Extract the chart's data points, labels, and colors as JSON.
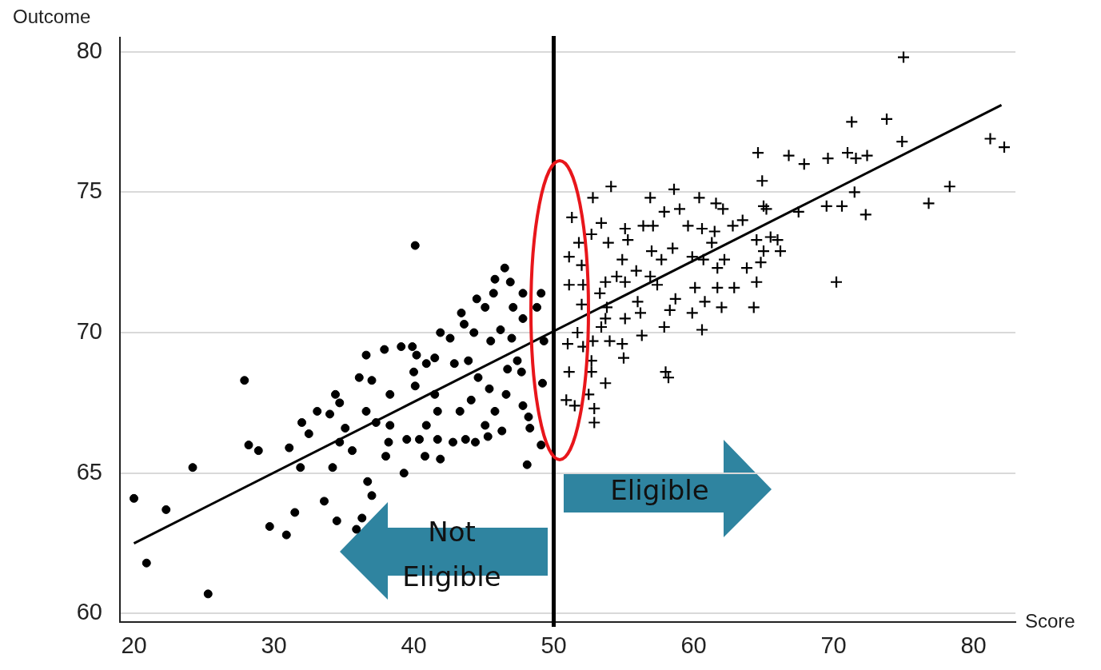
{
  "chart_data": {
    "type": "scatter",
    "xlabel": "Score",
    "ylabel": "Outcome",
    "xlim": [
      19,
      83
    ],
    "xticks": [
      20,
      30,
      40,
      50,
      60,
      70,
      80
    ],
    "ylim": [
      59.7,
      80.5
    ],
    "yticks": [
      60,
      65,
      70,
      75,
      80
    ],
    "grid": "y",
    "legend": false,
    "ref_lines": [
      {
        "axis": "x",
        "value": 50,
        "color": "#000000"
      }
    ],
    "annotations": [
      "Eligible",
      "Not Eligible"
    ],
    "series": [
      {
        "marker": "circle",
        "color": "#000000",
        "x": [
          20.0,
          20.9,
          22.3,
          24.2,
          25.3,
          27.9,
          28.2,
          28.9,
          29.7,
          30.9,
          31.1,
          31.5,
          31.9,
          32.0,
          32.5,
          33.1,
          33.6,
          34.0,
          34.2,
          34.4,
          34.5,
          34.7,
          34.7,
          35.1,
          35.6,
          35.9,
          36.1,
          36.3,
          36.6,
          36.6,
          36.7,
          37.0,
          37.0,
          37.3,
          38.0,
          38.2,
          38.3,
          37.9,
          38.3,
          39.1,
          39.3,
          39.5,
          39.9,
          40.0,
          40.1,
          40.2,
          40.4,
          40.8,
          40.9,
          40.9,
          41.5,
          41.5,
          41.7,
          41.7,
          41.9,
          41.9,
          42.6,
          42.8,
          42.9,
          43.3,
          43.4,
          43.6,
          43.7,
          43.9,
          44.1,
          44.3,
          44.4,
          44.5,
          44.6,
          45.1,
          45.1,
          45.3,
          45.4,
          45.5,
          45.7,
          45.8,
          45.8,
          46.2,
          46.3,
          46.5,
          46.6,
          46.7,
          46.9,
          47.0,
          47.1,
          47.4,
          47.7,
          47.8,
          47.8,
          48.1,
          47.8,
          48.2,
          48.3,
          48.8,
          49.1,
          49.1,
          49.2,
          40.1,
          49.3
        ],
        "values": [
          64.1,
          61.8,
          63.7,
          65.2,
          60.7,
          68.3,
          66.0,
          65.8,
          63.1,
          62.8,
          65.9,
          63.6,
          65.2,
          66.8,
          66.4,
          67.2,
          64.0,
          67.1,
          65.2,
          67.8,
          63.3,
          67.5,
          66.1,
          66.6,
          65.8,
          63.0,
          68.4,
          63.4,
          69.2,
          67.2,
          64.7,
          64.2,
          68.3,
          66.8,
          65.6,
          66.1,
          66.7,
          69.4,
          67.8,
          69.5,
          65.0,
          66.2,
          69.5,
          68.6,
          68.1,
          69.2,
          66.2,
          65.6,
          66.7,
          68.9,
          69.1,
          67.8,
          66.2,
          67.2,
          65.5,
          70.0,
          69.8,
          66.1,
          68.9,
          67.2,
          70.7,
          70.3,
          66.2,
          69.0,
          67.6,
          70.0,
          66.1,
          71.2,
          68.4,
          66.7,
          70.9,
          66.3,
          68.0,
          69.7,
          71.4,
          71.9,
          67.2,
          70.1,
          66.5,
          72.3,
          67.8,
          68.7,
          71.8,
          69.8,
          70.9,
          69.0,
          68.6,
          71.4,
          67.4,
          65.3,
          70.5,
          67.0,
          66.6,
          70.9,
          71.4,
          66.0,
          68.2,
          73.1,
          69.7
        ]
      },
      {
        "marker": "cross",
        "color": "#000000",
        "x": [
          75.0,
          71.3,
          73.8,
          74.9,
          81.2,
          82.2,
          64.6,
          66.8,
          67.9,
          69.6,
          71.0,
          71.6,
          72.4,
          64.9,
          78.3,
          76.8,
          71.5,
          69.5,
          70.6,
          72.3,
          67.5,
          54.1,
          52.8,
          56.9,
          58.6,
          60.4,
          61.6,
          62.1,
          65.0,
          65.2,
          57.9,
          59.0,
          51.3,
          53.4,
          63.5,
          62.8,
          59.6,
          56.4,
          57.1,
          60.6,
          61.5,
          52.7,
          55.1,
          51.8,
          53.9,
          55.3,
          65.5,
          66.0,
          64.5,
          61.3,
          58.5,
          57.0,
          66.2,
          65.0,
          51.1,
          54.9,
          59.9,
          60.7,
          62.2,
          57.7,
          64.8,
          52.0,
          63.8,
          61.7,
          55.9,
          54.5,
          56.9,
          64.5,
          70.2,
          51.1,
          52.1,
          53.7,
          55.1,
          57.4,
          60.1,
          61.7,
          62.9,
          53.3,
          56.0,
          58.7,
          60.8,
          52.0,
          62.0,
          64.3,
          53.8,
          58.3,
          59.9,
          53.7,
          55.1,
          56.2,
          53.4,
          57.9,
          60.6,
          51.7,
          56.3,
          51.0,
          52.8,
          54.0,
          54.9,
          52.1,
          52.7,
          55.0,
          51.1,
          52.7,
          58.0,
          58.2,
          53.7,
          52.5,
          50.9,
          51.5,
          52.9,
          52.9
        ],
        "values": [
          79.8,
          77.5,
          77.6,
          76.8,
          76.9,
          76.6,
          76.4,
          76.3,
          76.0,
          76.2,
          76.4,
          76.2,
          76.3,
          75.4,
          75.2,
          74.6,
          75.0,
          74.5,
          74.5,
          74.2,
          74.3,
          75.2,
          74.8,
          74.8,
          75.1,
          74.8,
          74.6,
          74.4,
          74.5,
          74.4,
          74.3,
          74.4,
          74.1,
          73.9,
          74.0,
          73.8,
          73.8,
          73.8,
          73.8,
          73.7,
          73.6,
          73.5,
          73.7,
          73.2,
          73.2,
          73.3,
          73.4,
          73.3,
          73.3,
          73.2,
          73.0,
          72.9,
          72.9,
          72.9,
          72.7,
          72.6,
          72.7,
          72.6,
          72.6,
          72.6,
          72.5,
          72.4,
          72.3,
          72.3,
          72.2,
          72.0,
          72.0,
          71.8,
          71.8,
          71.7,
          71.7,
          71.8,
          71.8,
          71.7,
          71.6,
          71.6,
          71.6,
          71.4,
          71.1,
          71.2,
          71.1,
          71.0,
          70.9,
          70.9,
          70.9,
          70.8,
          70.7,
          70.5,
          70.5,
          70.7,
          70.2,
          70.2,
          70.1,
          70.0,
          69.9,
          69.6,
          69.7,
          69.7,
          69.6,
          69.5,
          69.0,
          69.1,
          68.6,
          68.6,
          68.6,
          68.4,
          68.2,
          67.8,
          67.6,
          67.4,
          67.3,
          66.8
        ]
      },
      {
        "type": "line",
        "marker": "none",
        "color": "#000000",
        "x": [
          20,
          82
        ],
        "values": [
          62.5,
          78.1
        ]
      }
    ]
  }
}
